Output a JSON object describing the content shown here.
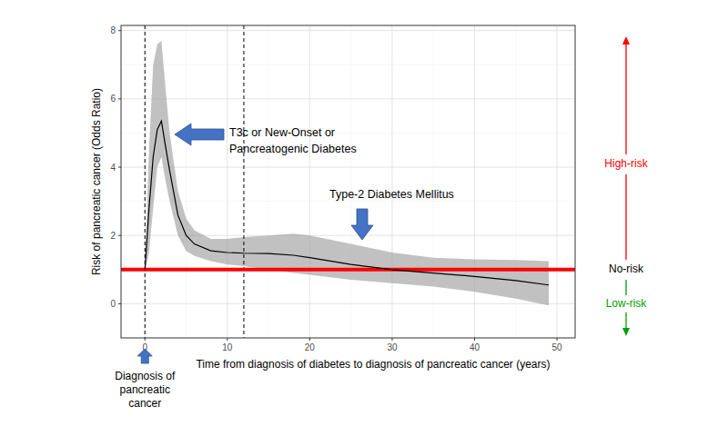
{
  "chart_data": {
    "type": "line",
    "x_label": "Time from diagnosis of diabetes to diagnosis of pancreatic cancer (years)",
    "y_label": "Risk of pancreatic cancer (Odds Ratio)",
    "xlim": [
      -2.9,
      52.2
    ],
    "ylim": [
      -1,
      8.15
    ],
    "xticks": [
      0,
      10,
      20,
      30,
      40,
      50
    ],
    "yticks": [
      0,
      2,
      4,
      6,
      8
    ],
    "grid": true,
    "series": [
      {
        "color": "#000000",
        "x": [
          0,
          0.5,
          1,
          1.5,
          2,
          2.5,
          3,
          4,
          5,
          6,
          8,
          10,
          12,
          15,
          18,
          20,
          25,
          30,
          35,
          40,
          45,
          49
        ],
        "values": [
          1,
          2.8,
          4.3,
          5.1,
          5.35,
          4.6,
          3.9,
          2.6,
          2.0,
          1.75,
          1.55,
          1.5,
          1.48,
          1.47,
          1.42,
          1.35,
          1.15,
          1.0,
          0.9,
          0.8,
          0.68,
          0.55
        ],
        "lower": [
          0.9,
          1.5,
          2.8,
          4.0,
          4.3,
          3.6,
          3.0,
          2.0,
          1.55,
          1.4,
          1.25,
          1.15,
          1.1,
          1.0,
          0.9,
          0.85,
          0.7,
          0.6,
          0.5,
          0.35,
          0.15,
          -0.05
        ],
        "upper": [
          1.1,
          4.5,
          7.0,
          7.6,
          7.7,
          6.3,
          5.0,
          3.3,
          2.5,
          2.15,
          1.9,
          1.9,
          1.95,
          2.0,
          2.05,
          2.0,
          1.75,
          1.5,
          1.35,
          1.3,
          1.28,
          1.25
        ]
      }
    ],
    "reference_lines": [
      {
        "axis": "x",
        "value": 0,
        "line_style": "dashed",
        "color": "#000000"
      },
      {
        "axis": "x",
        "value": 12,
        "line_style": "dashed",
        "color": "#000000"
      },
      {
        "axis": "y",
        "value": 1,
        "line_style": "solid",
        "color": "#ff0000"
      }
    ],
    "annotations": [
      {
        "lines": [
          "T3c or New-Onset or",
          "Pancreatogenic Diabetes"
        ]
      },
      {
        "lines": [
          "Type-2 Diabetes Mellitus"
        ]
      },
      {
        "lines": [
          "Diagnosis of",
          "pancreatic",
          "cancer"
        ]
      }
    ],
    "risk_labels": [
      {
        "text": "High-risk",
        "color": "#ff0000"
      },
      {
        "text": "No-risk",
        "color": "#000000"
      },
      {
        "text": "Low-risk",
        "color": "#00a000"
      }
    ]
  }
}
